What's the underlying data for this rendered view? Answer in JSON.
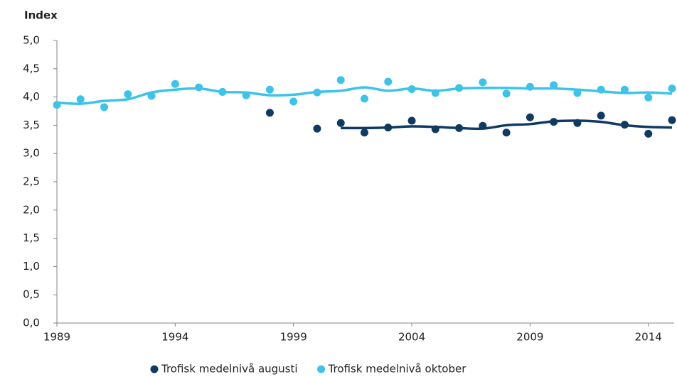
{
  "chart_data": {
    "type": "scatter-trend",
    "ylabel": "Index",
    "x": [
      1989,
      1990,
      1991,
      1992,
      1993,
      1994,
      1995,
      1996,
      1997,
      1998,
      1999,
      2000,
      2001,
      2002,
      2003,
      2004,
      2005,
      2006,
      2007,
      2008,
      2009,
      2010,
      2011,
      2012,
      2013,
      2014,
      2015
    ],
    "xlim": [
      1989,
      2015
    ],
    "xticks": [
      1989,
      1994,
      1999,
      2004,
      2009,
      2014
    ],
    "ylim": [
      0,
      5
    ],
    "yticks": [
      {
        "value": 0,
        "label": "0,0"
      },
      {
        "value": 0.5,
        "label": "0,5"
      },
      {
        "value": 1,
        "label": "1,0"
      },
      {
        "value": 1.5,
        "label": "1,5"
      },
      {
        "value": 2,
        "label": "2,0"
      },
      {
        "value": 2.5,
        "label": "2,5"
      },
      {
        "value": 3,
        "label": "3,0"
      },
      {
        "value": 3.5,
        "label": "3,5"
      },
      {
        "value": 4,
        "label": "4,0"
      },
      {
        "value": 4.5,
        "label": "4,5"
      },
      {
        "value": 5,
        "label": "5,0"
      }
    ],
    "series": [
      {
        "name": "Trofisk medelnivå augusti",
        "color": "#0f3a63",
        "mode": "markers",
        "values": [
          null,
          null,
          null,
          null,
          null,
          null,
          null,
          null,
          null,
          3.72,
          null,
          3.44,
          3.54,
          3.37,
          3.46,
          3.58,
          3.43,
          3.45,
          3.49,
          3.37,
          3.64,
          3.56,
          3.54,
          3.67,
          3.51,
          3.35,
          3.59
        ]
      },
      {
        "name": "Trofisk medelnivå oktober",
        "color": "#3cc3ea",
        "mode": "markers",
        "values": [
          3.86,
          3.96,
          3.82,
          4.05,
          4.02,
          4.23,
          4.17,
          4.09,
          4.03,
          4.13,
          3.92,
          4.08,
          4.3,
          3.97,
          4.27,
          4.14,
          4.07,
          4.16,
          4.26,
          4.06,
          4.18,
          4.21,
          4.07,
          4.13,
          4.13,
          3.99,
          4.15
        ]
      },
      {
        "color": "#0f3a63",
        "mode": "line",
        "values": [
          null,
          null,
          null,
          null,
          null,
          null,
          null,
          null,
          null,
          null,
          null,
          null,
          3.45,
          3.45,
          3.46,
          3.48,
          3.47,
          3.45,
          3.44,
          3.5,
          3.52,
          3.57,
          3.58,
          3.56,
          3.5,
          3.47,
          3.46
        ]
      },
      {
        "color": "#3cc3ea",
        "mode": "line",
        "values": [
          3.9,
          3.88,
          3.93,
          3.96,
          4.08,
          4.13,
          4.15,
          4.09,
          4.08,
          4.03,
          4.04,
          4.09,
          4.11,
          4.17,
          4.11,
          4.15,
          4.11,
          4.15,
          4.16,
          4.16,
          4.15,
          4.15,
          4.13,
          4.1,
          4.07,
          4.08,
          4.06
        ]
      }
    ]
  }
}
